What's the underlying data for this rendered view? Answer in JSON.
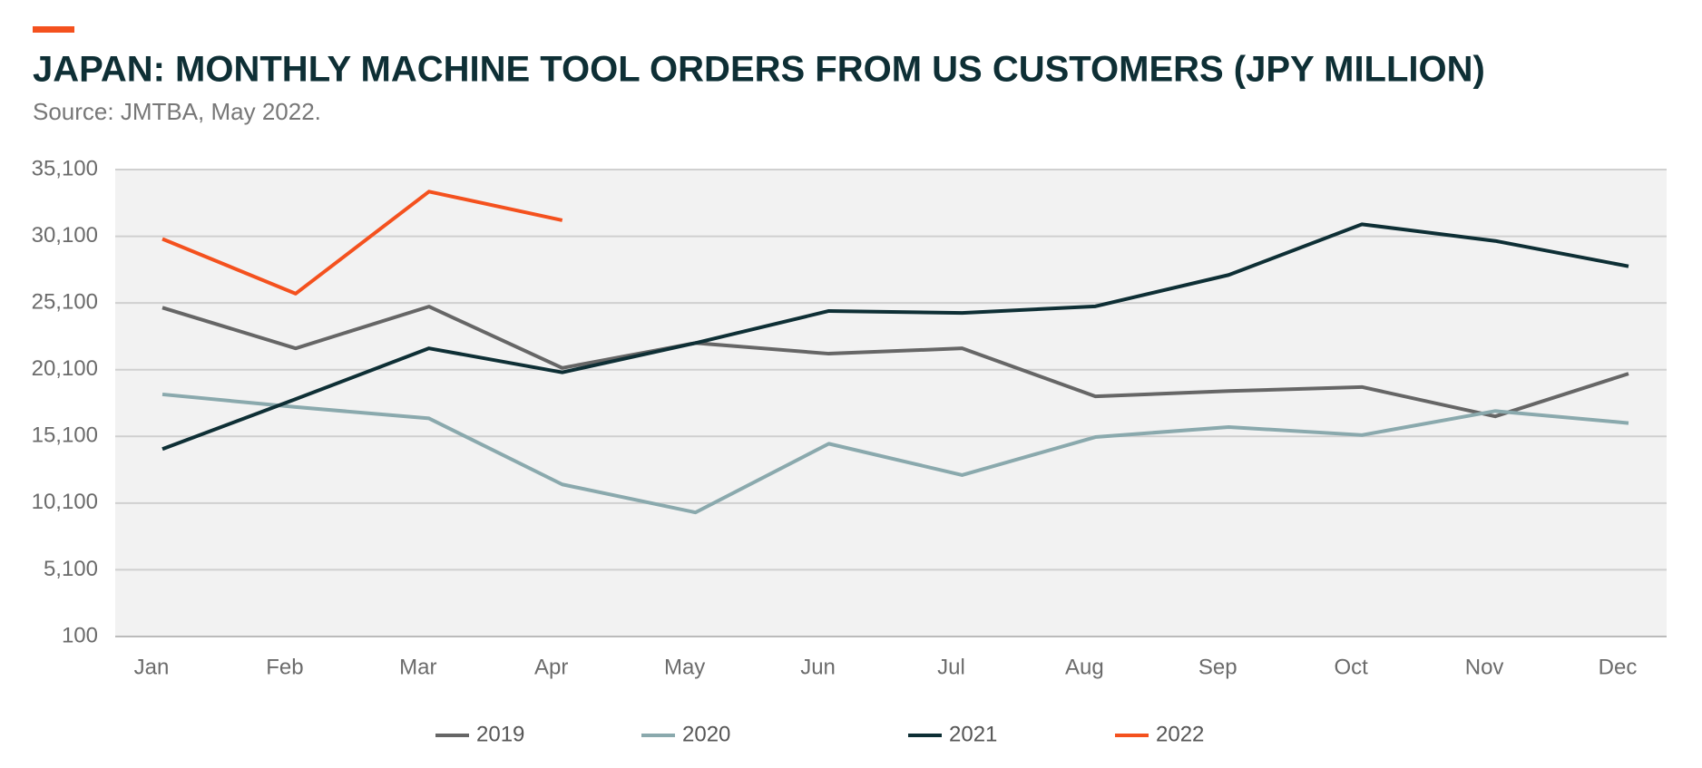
{
  "chart_data": {
    "type": "line",
    "title": "JAPAN: MONTHLY MACHINE TOOL ORDERS FROM US CUSTOMERS (JPY MILLION)",
    "subtitle": "Source: JMTBA, May 2022.",
    "categories": [
      "Jan",
      "Feb",
      "Mar",
      "Apr",
      "May",
      "Jun",
      "Jul",
      "Aug",
      "Sep",
      "Oct",
      "Nov",
      "Dec"
    ],
    "series": [
      {
        "name": "2019",
        "color": "#666666",
        "values": [
          24750,
          21700,
          24830,
          20230,
          22100,
          21300,
          21700,
          18100,
          18500,
          18800,
          16600,
          19800
        ]
      },
      {
        "name": "2020",
        "color": "#8aa9ad",
        "values": [
          18250,
          17300,
          16450,
          11500,
          9400,
          14550,
          12200,
          15050,
          15800,
          15200,
          17000,
          16100
        ]
      },
      {
        "name": "2021",
        "color": "#0e2f35",
        "values": [
          14150,
          17900,
          21700,
          19900,
          22100,
          24500,
          24350,
          24850,
          27200,
          31000,
          29750,
          27850
        ]
      },
      {
        "name": "2022",
        "color": "#f4511e",
        "values": [
          29900,
          25800,
          33450,
          31300,
          null,
          null,
          null,
          null,
          null,
          null,
          null,
          null
        ]
      }
    ],
    "ylim": [
      100,
      35100
    ],
    "yticks": [
      100,
      {
        "value": 5100,
        "label": "5,100"
      },
      {
        "value": 10100,
        "label": "10,100"
      },
      {
        "value": 15100,
        "label": "15,100"
      },
      {
        "value": 20100,
        "label": "20,100"
      },
      {
        "value": 25100,
        "label": "25,100"
      },
      {
        "value": 30100,
        "label": "30,100"
      },
      {
        "value": 35100,
        "label": "35,100"
      }
    ],
    "grid": true,
    "legend": "bottom"
  }
}
